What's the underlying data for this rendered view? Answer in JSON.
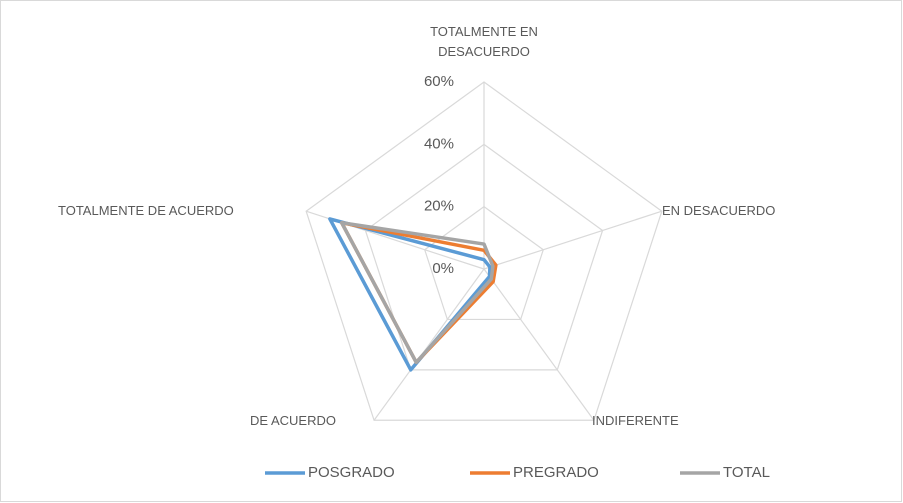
{
  "chart_data": {
    "type": "radar",
    "categories": [
      "TOTALMENTE EN DESACUERDO",
      "EN DESACUERDO",
      "INDIFERENTE",
      "DE ACUERDO",
      "TOTALMENTE DE ACUERDO"
    ],
    "series": [
      {
        "name": "POSGRADO",
        "color": "#5b9bd5",
        "values": [
          3,
          2,
          3,
          40,
          52
        ]
      },
      {
        "name": "PREGRADO",
        "color": "#ed7d31",
        "values": [
          6,
          4,
          5,
          37,
          48
        ]
      },
      {
        "name": "TOTAL",
        "color": "#a5a5a5",
        "values": [
          8,
          3,
          4,
          37,
          48
        ]
      }
    ],
    "ylim": [
      0,
      60
    ],
    "yticks": [
      {
        "value": 0,
        "label": "0%"
      },
      {
        "value": 20,
        "label": "20%"
      },
      {
        "value": 40,
        "label": "40%"
      },
      {
        "value": 60,
        "label": "60%"
      }
    ],
    "grid": true,
    "legend": "bottom"
  }
}
